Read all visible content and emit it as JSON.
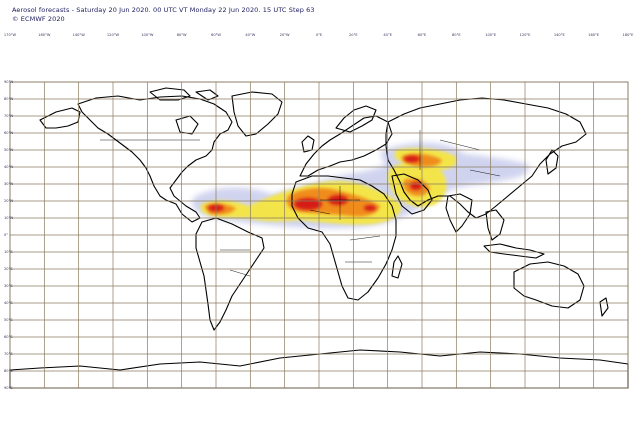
{
  "header": {
    "title": "Aerosol forecasts - Saturday 20 Jun 2020. 00 UTC VT Monday 22 Jun 2020. 15 UTC Step 63",
    "copyright": "© ECMWF 2020"
  },
  "map": {
    "projection": "equirectangular",
    "grid": true,
    "grid_color": "#8a7a60",
    "coast_color": "#000000",
    "lon_labels": [
      "170°W",
      "160°W",
      "140°W",
      "120°W",
      "100°W",
      "80°W",
      "60°W",
      "40°W",
      "20°W",
      "0°E",
      "20°E",
      "40°E",
      "60°E",
      "80°E",
      "100°E",
      "120°E",
      "140°E",
      "160°E",
      "180°E"
    ],
    "lat_labels": [
      "90°N",
      "80°N",
      "70°N",
      "60°N",
      "50°N",
      "40°N",
      "30°N",
      "20°N",
      "10°N",
      "0°",
      "10°S",
      "20°S",
      "30°S",
      "40°S",
      "50°S",
      "60°S",
      "70°S",
      "80°S",
      "90°S"
    ],
    "dust_colors": {
      "low": "#c8ccec",
      "mid": "#f3e54a",
      "high": "#f08c1e",
      "peak": "#d61e16"
    }
  }
}
